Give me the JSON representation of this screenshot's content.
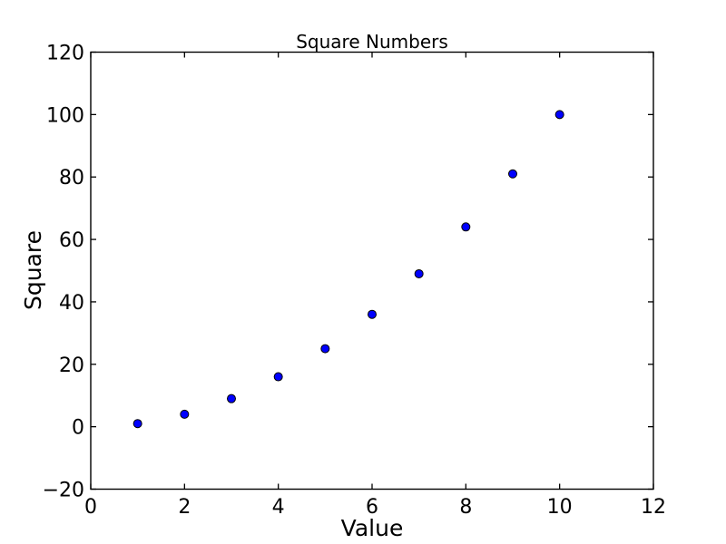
{
  "figure": {
    "background": "#ffffff"
  },
  "chart_data": {
    "type": "scatter",
    "title": "Square Numbers",
    "xlabel": "Value",
    "ylabel": "Square",
    "x": [
      1,
      2,
      3,
      4,
      5,
      6,
      7,
      8,
      9,
      10
    ],
    "y": [
      1,
      4,
      9,
      16,
      25,
      36,
      49,
      64,
      81,
      100
    ],
    "xlim": [
      0,
      12
    ],
    "ylim": [
      -20,
      120
    ],
    "xticks": [
      0,
      2,
      4,
      6,
      8,
      10,
      12
    ],
    "yticks": [
      -20,
      0,
      20,
      40,
      60,
      80,
      100,
      120
    ],
    "grid": false,
    "legend": "none",
    "tick_direction": "in",
    "marker": {
      "shape": "circle",
      "fill": "#0000ff",
      "edge": "#000000",
      "radius_px": 4.5
    },
    "frame_color": "#000000",
    "text_color": "#000000"
  }
}
